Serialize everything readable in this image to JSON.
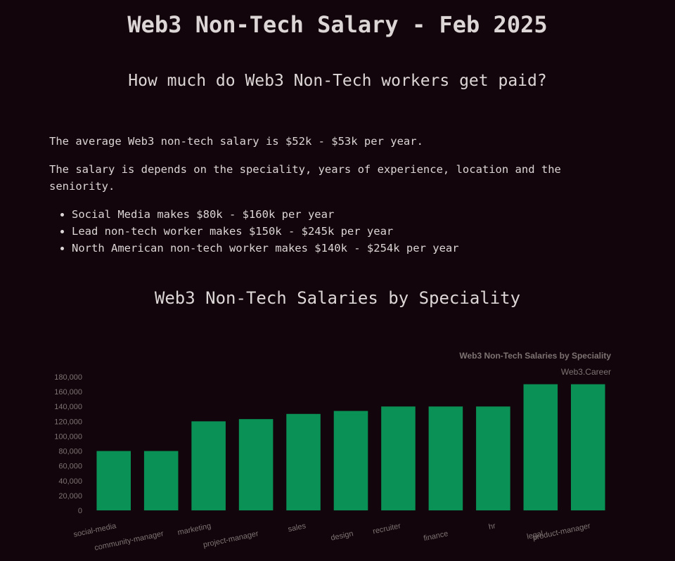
{
  "page": {
    "title": "Web3 Non-Tech Salary - Feb 2025",
    "subtitle": "How much do Web3 Non-Tech workers get paid?",
    "intro": "The average Web3 non-tech salary is $52k - $53k per year.",
    "detail": "The salary is depends on the speciality, years of experience, location and the seniority.",
    "bullets": [
      "Social Media makes $80k - $160k per year",
      "Lead non-tech worker makes $150k - $245k per year",
      "North American non-tech worker makes $140k - $254k per year"
    ],
    "chart_heading": "Web3 Non-Tech Salaries by Speciality"
  },
  "colors": {
    "background": "#12050b",
    "bar": "#0a9155",
    "axis_text": "#7d7373",
    "text": "#dcd6d6"
  },
  "chart_data": {
    "type": "bar",
    "title": "Web3 Non-Tech Salaries by Speciality",
    "subtitle": "Web3.Career",
    "categories": [
      "social-media",
      "community-manager",
      "marketing",
      "project-manager",
      "sales",
      "design",
      "recruiter",
      "finance",
      "hr",
      "legal",
      "product-manager"
    ],
    "values": [
      80000,
      80000,
      120000,
      123000,
      130000,
      134000,
      140000,
      140000,
      140000,
      170000,
      170000
    ],
    "ylim": [
      0,
      180000
    ],
    "yticks": [
      0,
      20000,
      40000,
      60000,
      80000,
      100000,
      120000,
      140000,
      160000,
      180000
    ],
    "ytick_labels": [
      "0",
      "20,000",
      "40,000",
      "60,000",
      "80,000",
      "100,000",
      "120,000",
      "140,000",
      "160,000",
      "180,000"
    ],
    "grid": false,
    "legend": "none"
  }
}
